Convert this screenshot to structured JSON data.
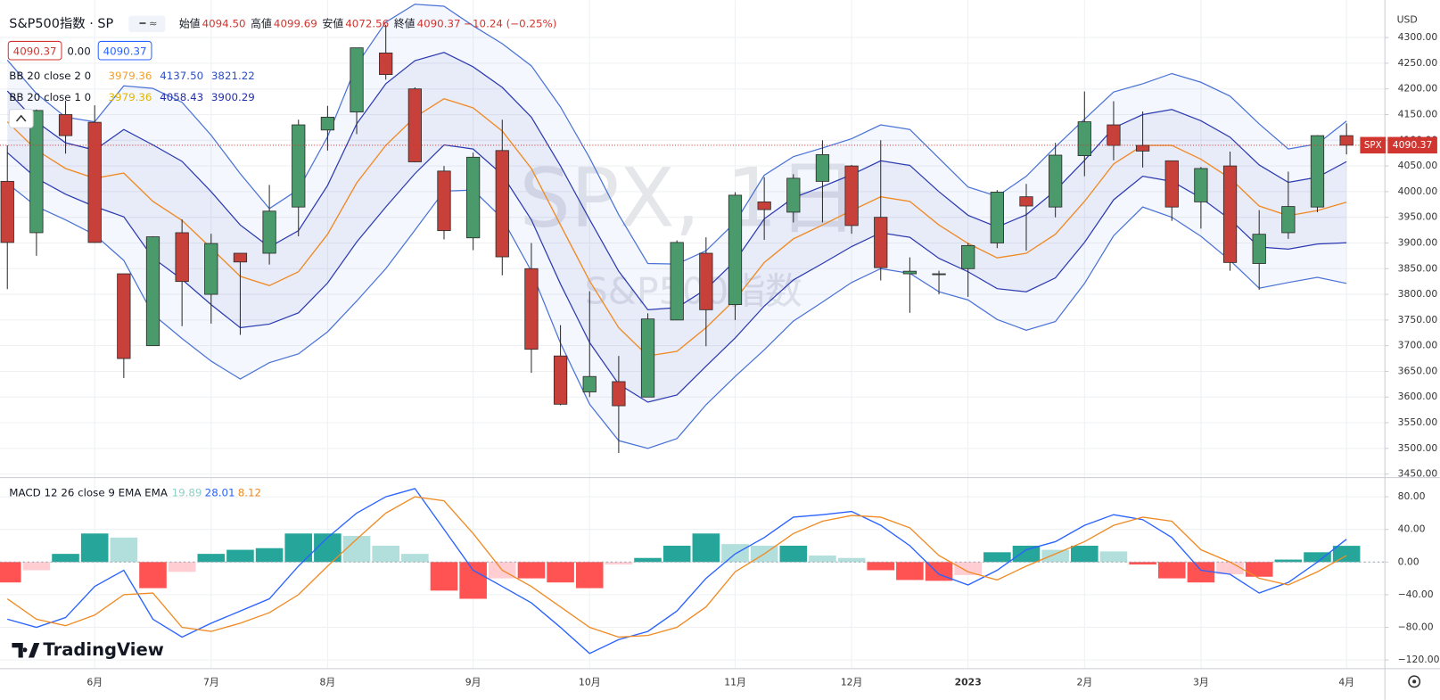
{
  "header": {
    "ohlc": [
      {
        "label": "始値",
        "value": "4094.50"
      },
      {
        "label": "高値",
        "value": "4099.69"
      },
      {
        "label": "安値",
        "value": "4072.56"
      },
      {
        "label": "終値",
        "value": "4090.37"
      }
    ],
    "change": "−10.24 (−0.25%)",
    "spread": "0.00",
    "currency": "USD",
    "price_tag": "SPX",
    "logo": "TradingView"
  },
  "chart_data": [
    {
      "type": "candlestick",
      "title": "S&P500指数 · SP",
      "watermark": [
        "SPX, 1日",
        "S&P500指数"
      ],
      "categories": [
        null,
        null,
        null,
        "6月",
        null,
        null,
        null,
        "7月",
        null,
        null,
        null,
        "8月",
        null,
        null,
        null,
        null,
        "9月",
        null,
        null,
        null,
        "10月",
        null,
        null,
        null,
        null,
        "11月",
        null,
        null,
        null,
        "12月",
        null,
        null,
        null,
        "2023",
        null,
        null,
        null,
        "2月",
        null,
        null,
        null,
        "3月",
        null,
        null,
        null,
        null,
        "4月"
      ],
      "open": [
        4020,
        3920,
        4150,
        4135,
        3840,
        3700,
        3920,
        3800,
        3880,
        3880,
        3970,
        4120,
        4155,
        4270,
        4200,
        4040,
        3910,
        4080,
        3850,
        3680,
        3610,
        3630,
        3600,
        3750,
        3880,
        3780,
        3980,
        3960,
        4020,
        4050,
        3950,
        3840,
        3840,
        3850,
        3900,
        3990,
        3970,
        4070,
        4130,
        4090,
        4060,
        3980,
        4050,
        3860,
        3920,
        3970,
        4109
      ],
      "high": [
        4090,
        4160,
        4177,
        4168,
        3840,
        3913,
        3946,
        3918,
        3880,
        4013,
        4140,
        4167,
        4280,
        4325,
        4203,
        4050,
        4076,
        4140,
        3900,
        3740,
        3806,
        3680,
        3763,
        3905,
        3911,
        3999,
        4028,
        4034,
        4100,
        4052,
        4100,
        3872,
        3846,
        3900,
        4003,
        4015,
        4095,
        4195,
        4176,
        4156,
        4060,
        4048,
        4078,
        3964,
        4039,
        4110,
        4133
      ],
      "low": [
        3810,
        3875,
        4074,
        3900,
        3637,
        3700,
        3738,
        3743,
        3721,
        3858,
        3913,
        4080,
        4112,
        4218,
        4057,
        3907,
        3886,
        3837,
        3647,
        3584,
        3600,
        3491,
        3600,
        3750,
        3699,
        3750,
        3906,
        3940,
        3940,
        3918,
        3827,
        3764,
        3800,
        3795,
        3890,
        3885,
        3950,
        4030,
        4061,
        4047,
        3943,
        3928,
        3846,
        3809,
        3908,
        3960,
        4072.56
      ],
      "close": [
        3901,
        4158,
        4109,
        3901,
        3675,
        3912,
        3825,
        3899,
        3863,
        3962,
        4130,
        4145,
        4280,
        4228,
        4058,
        3924,
        4067,
        3873,
        3693,
        3586,
        3640,
        3583,
        3752,
        3901,
        3770,
        3993,
        3965,
        4026,
        4072,
        3934,
        3852,
        3845,
        3840,
        3895,
        3999,
        3972,
        4071,
        4136,
        4090,
        4079,
        3970,
        4045,
        3862,
        3917,
        3971,
        4109,
        4090.37
      ],
      "up_color": "#4a9a6b",
      "down_color": "#c8403a",
      "last_price_color": "#d0352f",
      "bollinger": [
        {
          "name": "BB 20 close 2 0",
          "legend_values": [
            "3979.36",
            "4137.50",
            "3821.22"
          ],
          "legend_colors": [
            "#f29f2f",
            "#2d4fc2",
            "#2d4fc2"
          ],
          "basis_color": "#f08a24",
          "band_color": "#4a72d6",
          "basis": [
            4136,
            4081,
            4045,
            4026,
            4036,
            3981,
            3944,
            3890,
            3835,
            3817,
            3844,
            3917,
            4017,
            4090,
            4145,
            4181,
            4163,
            4118,
            4045,
            3935,
            3826,
            3735,
            3680,
            3689,
            3735,
            3790,
            3862,
            3908,
            3935,
            3963,
            3990,
            3981,
            3935,
            3899,
            3871,
            3880,
            3917,
            3981,
            4054,
            4090,
            4090,
            4063,
            4026,
            3972,
            3953,
            3963,
            3979.36
          ],
          "upper": [
            4256,
            4191,
            4145,
            4136,
            4206,
            4201,
            4174,
            4110,
            4035,
            3967,
            4004,
            4107,
            4247,
            4330,
            4365,
            4361,
            4323,
            4288,
            4245,
            4165,
            4066,
            3955,
            3860,
            3859,
            3885,
            3940,
            4032,
            4068,
            4085,
            4103,
            4130,
            4121,
            4065,
            4009,
            3991,
            4030,
            4087,
            4141,
            4194,
            4210,
            4230,
            4213,
            4186,
            4132,
            4083,
            4093,
            4137.5
          ],
          "lower": [
            4016,
            3971,
            3945,
            3916,
            3866,
            3761,
            3714,
            3670,
            3635,
            3667,
            3684,
            3727,
            3787,
            3850,
            3925,
            4001,
            4003,
            3948,
            3845,
            3705,
            3586,
            3515,
            3500,
            3519,
            3585,
            3640,
            3692,
            3748,
            3785,
            3823,
            3850,
            3841,
            3805,
            3789,
            3751,
            3730,
            3747,
            3821,
            3914,
            3970,
            3950,
            3913,
            3866,
            3812,
            3823,
            3833,
            3821.22
          ]
        },
        {
          "name": "BB 20 close 1 0",
          "legend_values": [
            "3979.36",
            "4058.43",
            "3900.29"
          ],
          "legend_colors": [
            "#e3b400",
            "#2430a8",
            "#2430a8"
          ],
          "band_color": "#2b3ab0",
          "upper": [
            4196,
            4136,
            4095,
            4081,
            4121,
            4091,
            4059,
            4000,
            3935,
            3892,
            3924,
            4012,
            4132,
            4210,
            4255,
            4271,
            4243,
            4203,
            4145,
            4050,
            3946,
            3845,
            3770,
            3774,
            3810,
            3865,
            3947,
            3988,
            4010,
            4033,
            4060,
            4051,
            4000,
            3954,
            3931,
            3955,
            4002,
            4061,
            4124,
            4150,
            4160,
            4138,
            4106,
            4052,
            4018,
            4028,
            4058.43
          ],
          "lower": [
            4076,
            4026,
            3995,
            3971,
            3951,
            3871,
            3829,
            3780,
            3735,
            3742,
            3764,
            3822,
            3902,
            3970,
            4035,
            4091,
            4083,
            4033,
            3945,
            3820,
            3706,
            3625,
            3590,
            3604,
            3660,
            3715,
            3777,
            3828,
            3860,
            3893,
            3920,
            3911,
            3870,
            3844,
            3811,
            3805,
            3832,
            3901,
            3984,
            4030,
            4020,
            3988,
            3946,
            3892,
            3888,
            3898,
            3900.29
          ]
        }
      ],
      "ylim": [
        3443,
        4373
      ],
      "yticks": [
        {
          "value": 4300,
          "label": "4300.00"
        },
        {
          "value": 4250,
          "label": "4250.00"
        },
        {
          "value": 4200,
          "label": "4200.00"
        },
        {
          "value": 4150,
          "label": "4150.00"
        },
        {
          "value": 4100,
          "label": "4100.00"
        },
        {
          "value": 4050,
          "label": "4050.00"
        },
        {
          "value": 4000,
          "label": "4000.00"
        },
        {
          "value": 3950,
          "label": "3950.00"
        },
        {
          "value": 3900,
          "label": "3900.00"
        },
        {
          "value": 3850,
          "label": "3850.00"
        },
        {
          "value": 3800,
          "label": "3800.00"
        },
        {
          "value": 3750,
          "label": "3750.00"
        },
        {
          "value": 3700,
          "label": "3700.00"
        },
        {
          "value": 3650,
          "label": "3650.00"
        },
        {
          "value": 3600,
          "label": "3600.00"
        },
        {
          "value": 3550,
          "label": "3550.00"
        },
        {
          "value": 3500,
          "label": "3500.00"
        },
        {
          "value": 3450,
          "label": "3450.00"
        }
      ],
      "grid": true
    },
    {
      "type": "macd",
      "title": "MACD 12 26 close 9 EMA EMA",
      "legend_values": [
        "19.89",
        "28.01",
        "8.12"
      ],
      "legend_colors": [
        "#8fcfc7",
        "#2962ff",
        "#f08a24"
      ],
      "series": [
        {
          "name": "MACD",
          "color": "#2962ff",
          "values": [
            -70,
            -80,
            -68,
            -30,
            -10,
            -70,
            -92,
            -75,
            -60,
            -45,
            -5,
            30,
            60,
            80,
            90,
            40,
            -10,
            -30,
            -50,
            -80,
            -112,
            -95,
            -85,
            -60,
            -20,
            10,
            30,
            55,
            58,
            62,
            45,
            20,
            -15,
            -28,
            -10,
            15,
            25,
            45,
            58,
            52,
            30,
            -10,
            -15,
            -38,
            -25,
            0,
            28.01
          ]
        },
        {
          "name": "Signal",
          "color": "#f08a24",
          "values": [
            -45,
            -70,
            -78,
            -65,
            -40,
            -38,
            -80,
            -85,
            -75,
            -62,
            -40,
            -5,
            28,
            60,
            80,
            75,
            35,
            -10,
            -30,
            -55,
            -80,
            -92,
            -90,
            -80,
            -55,
            -12,
            10,
            35,
            50,
            57,
            55,
            42,
            8,
            -12,
            -22,
            -5,
            10,
            25,
            45,
            55,
            50,
            15,
            0,
            -20,
            -28,
            -12,
            8.12
          ]
        }
      ],
      "histogram": [
        -25,
        -10,
        10,
        35,
        30,
        -32,
        -12,
        10,
        15,
        17,
        35,
        35,
        32,
        20,
        10,
        -35,
        -45,
        -20,
        -20,
        -25,
        -32,
        -3,
        5,
        20,
        35,
        22,
        20,
        20,
        8,
        5,
        -10,
        -22,
        -23,
        -16,
        12,
        20,
        15,
        20,
        13,
        -3,
        -20,
        -25,
        -15,
        -18,
        3,
        12,
        19.89
      ],
      "histogram_colors": {
        "up_rising": "#26a69a",
        "up_falling": "#b2dfdb",
        "down_falling": "#ff5252",
        "down_rising": "#ffcdd2"
      },
      "ylim": [
        -130.7,
        103.4
      ],
      "yticks": [
        {
          "value": 80,
          "label": "80.00"
        },
        {
          "value": 40,
          "label": "40.00"
        },
        {
          "value": 0,
          "label": "0.00"
        },
        {
          "value": -40,
          "label": "−40.00"
        },
        {
          "value": -80,
          "label": "−80.00"
        },
        {
          "value": -120,
          "label": "−120.00"
        }
      ],
      "grid": true
    }
  ]
}
